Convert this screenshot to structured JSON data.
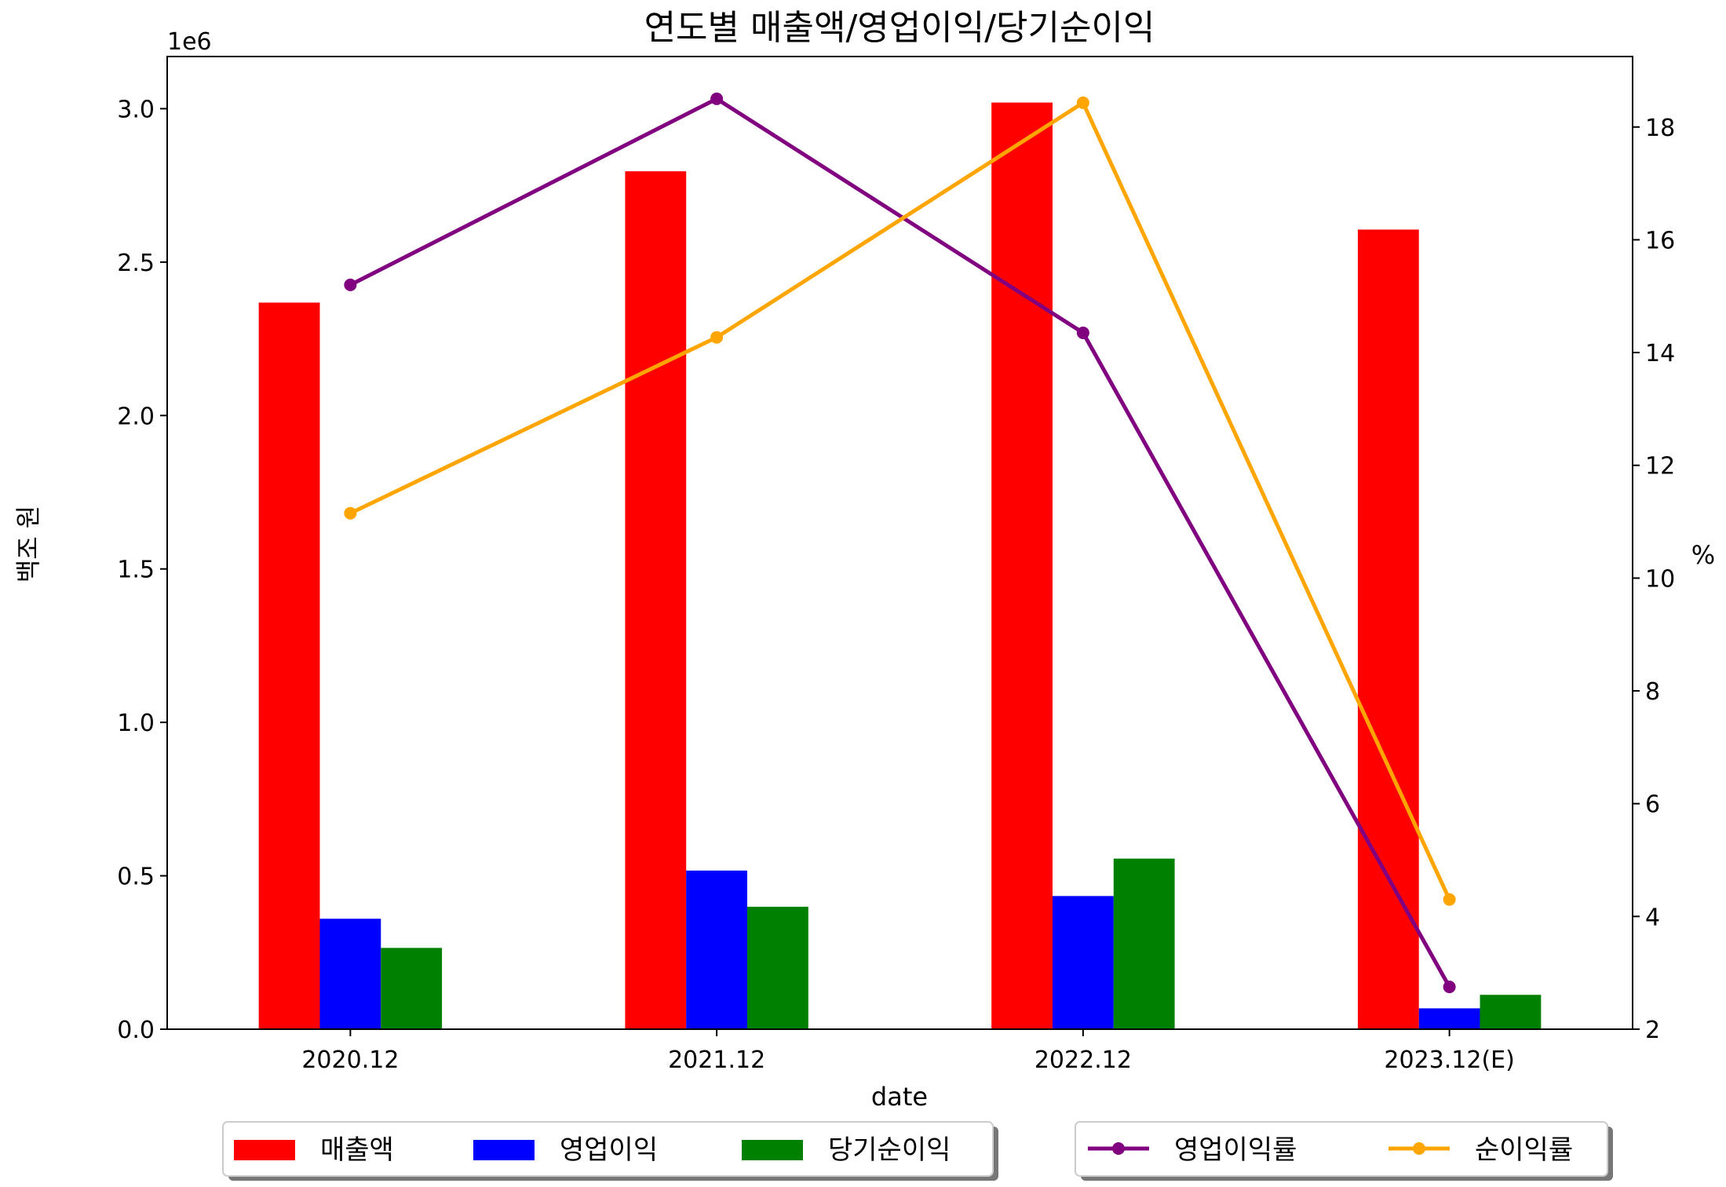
{
  "chart_data": {
    "type": "bar+line",
    "title": "연도별 매출액/영업이익/당기순이익",
    "xlabel": "date",
    "ylabel_left": "백조 원",
    "ylabel_right": "%",
    "left_axis_offset_label": "1e6",
    "categories": [
      "2020.12",
      "2021.12",
      "2022.12",
      "2023.12(E)"
    ],
    "ylim_left": [
      0,
      3.17
    ],
    "ylim_right": [
      2,
      19.25
    ],
    "yticks_left": [
      "0.0",
      "0.5",
      "1.0",
      "1.5",
      "2.0",
      "2.5",
      "3.0"
    ],
    "yticks_right": [
      "2",
      "4",
      "6",
      "8",
      "10",
      "12",
      "14",
      "16",
      "18"
    ],
    "bar_series": [
      {
        "name": "매출액",
        "color": "#ff0000",
        "values": [
          2.368,
          2.796,
          3.02,
          2.606
        ]
      },
      {
        "name": "영업이익",
        "color": "#0000ff",
        "values": [
          0.36,
          0.517,
          0.434,
          0.068
        ]
      },
      {
        "name": "당기순이익",
        "color": "#008000",
        "values": [
          0.265,
          0.399,
          0.556,
          0.112
        ]
      }
    ],
    "line_series": [
      {
        "name": "영업이익률",
        "color": "#800080",
        "values": [
          15.2,
          18.5,
          14.35,
          2.75
        ]
      },
      {
        "name": "순이익률",
        "color": "#ffa500",
        "values": [
          11.15,
          14.27,
          18.43,
          4.3
        ]
      }
    ],
    "legend_bars_placement": "bottom-left",
    "legend_lines_placement": "bottom-right",
    "grid": false
  }
}
